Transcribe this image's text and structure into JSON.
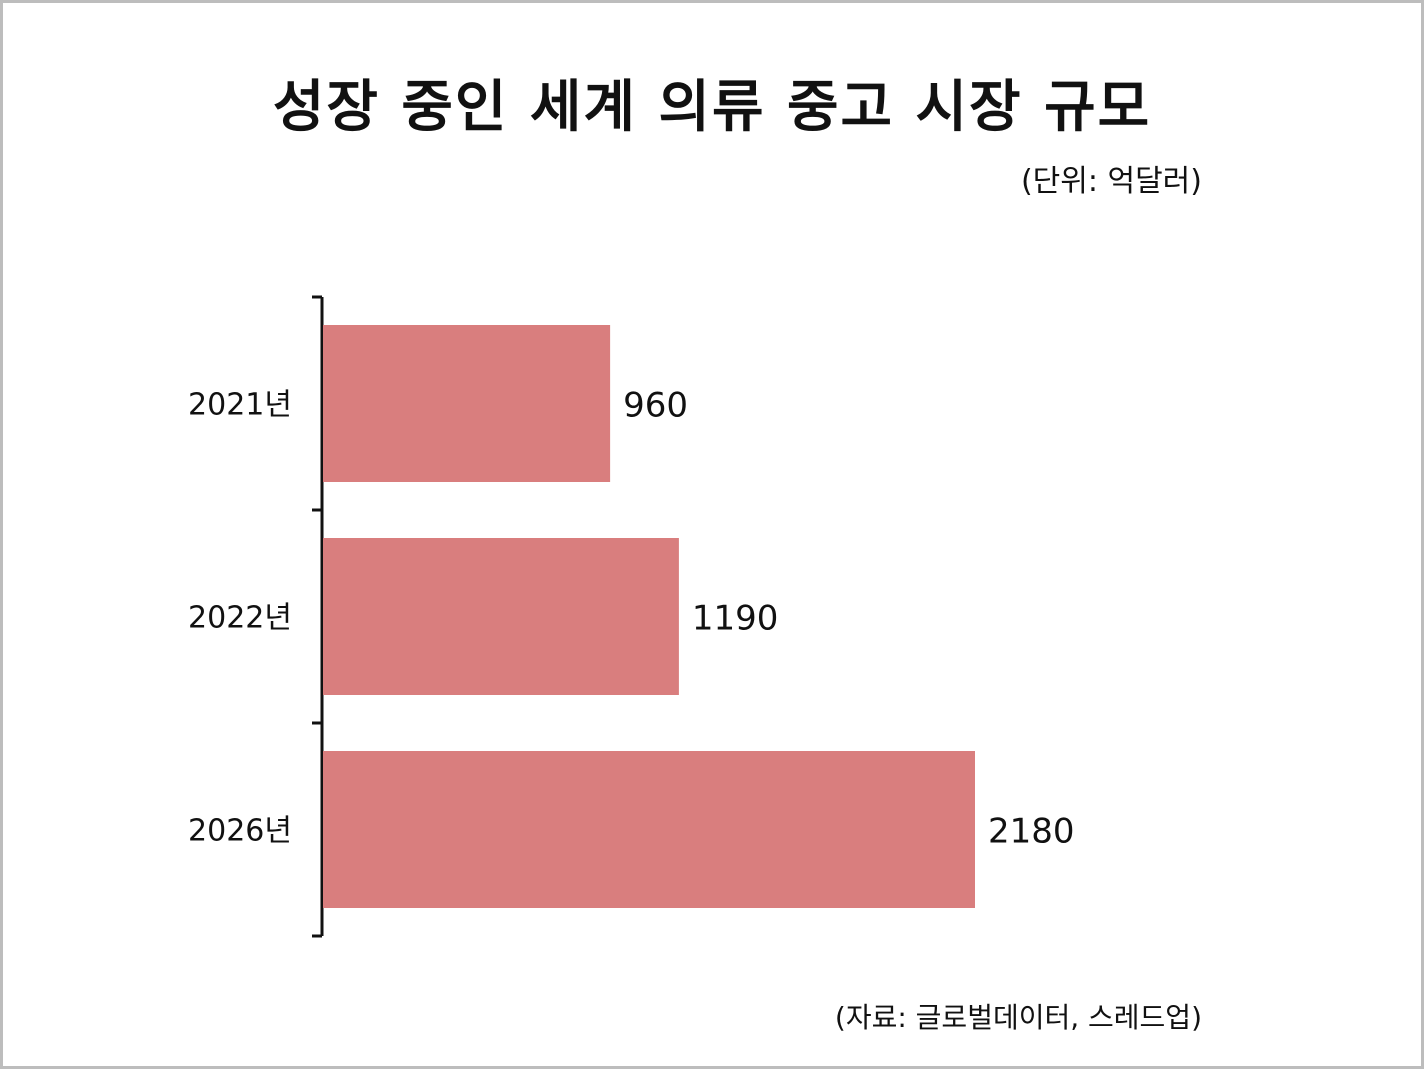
{
  "title": "성장 중인 세계 의류 중고 시장 규모",
  "unit": "(단위: 억달러)",
  "source": "(자료: 글로벌데이터, 스레드업)",
  "colors": {
    "bar": "#d97e7e",
    "axis": "#111111",
    "frame": "#bdbdbd"
  },
  "chart_data": {
    "type": "bar",
    "orientation": "horizontal",
    "categories": [
      "2021년",
      "2022년",
      "2026년"
    ],
    "values": [
      960,
      1190,
      2180
    ],
    "value_labels": [
      "960",
      "1190",
      "2180"
    ],
    "title": "성장 중인 세계 의류 중고 시장 규모",
    "xlabel": "",
    "ylabel": "",
    "xlim": [
      0,
      2180
    ],
    "grid": false,
    "legend": "none"
  }
}
